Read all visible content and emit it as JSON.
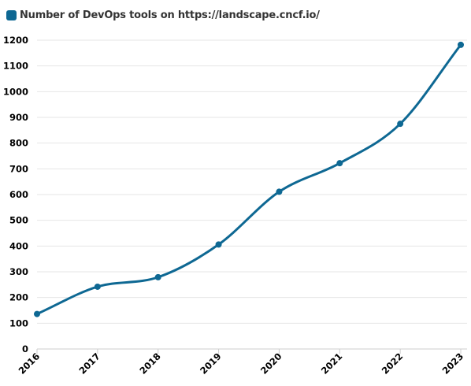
{
  "legend": {
    "label": "Number of DevOps tools on https://landscape.cncf.io/"
  },
  "colors": {
    "series": "#0e6893",
    "grid": "#e6e6e6",
    "axis": "#cccccc"
  },
  "chart_data": {
    "type": "line",
    "title": "",
    "xlabel": "",
    "ylabel": "",
    "ylim": [
      0,
      1200
    ],
    "yticks": [
      0,
      100,
      200,
      300,
      400,
      500,
      600,
      700,
      800,
      900,
      1000,
      1100,
      1200
    ],
    "grid": true,
    "legend_position": "top-left",
    "categories": [
      "2016",
      "2017",
      "2018",
      "2019",
      "2020",
      "2021",
      "2022",
      "2023"
    ],
    "series": [
      {
        "name": "Number of DevOps tools on https://landscape.cncf.io/",
        "values": [
          136,
          242,
          279,
          406,
          611,
          722,
          875,
          1182
        ]
      }
    ]
  }
}
